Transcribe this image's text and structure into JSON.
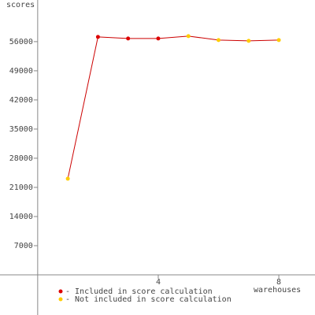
{
  "chart_data": {
    "type": "line",
    "y_label": "scores",
    "x_label": "warehouses",
    "x": [
      1,
      2,
      3,
      4,
      5,
      6,
      7,
      8
    ],
    "values": [
      23081,
      57135,
      56757,
      56757,
      57324,
      56378,
      56189,
      56378
    ],
    "included": [
      false,
      true,
      true,
      true,
      false,
      false,
      false,
      false
    ],
    "color": "#cc0000",
    "legend": [
      {
        "label": "- Included in score calculation",
        "color": "#dd0000"
      },
      {
        "label": "- Not included in score calculation",
        "color": "#ffcc00"
      }
    ],
    "xlim": [
      -1.25,
      9.2
    ],
    "ylim": [
      -9650,
      66000
    ],
    "xticks": [
      4,
      8
    ],
    "yticks": [
      7000,
      14000,
      21000,
      28000,
      35000,
      42000,
      49000,
      56000
    ]
  }
}
